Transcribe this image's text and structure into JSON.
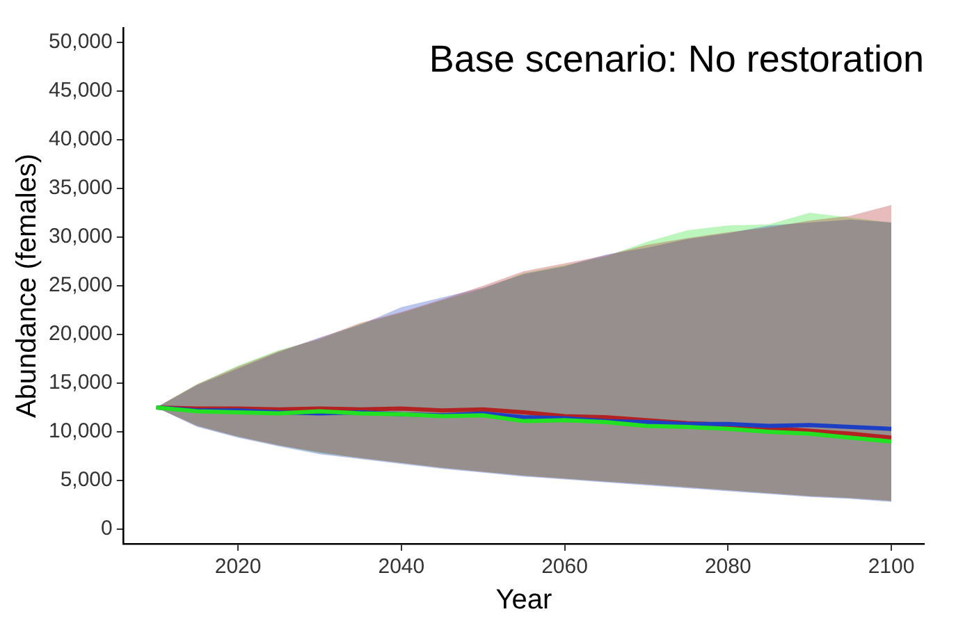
{
  "chart_data": {
    "type": "line",
    "title": "Base scenario: No restoration",
    "xlabel": "Year",
    "ylabel": "Abundance (females)",
    "x": [
      2010,
      2015,
      2020,
      2025,
      2030,
      2035,
      2040,
      2045,
      2050,
      2055,
      2060,
      2065,
      2070,
      2075,
      2080,
      2085,
      2090,
      2095,
      2100
    ],
    "xlim": [
      2006,
      2104
    ],
    "xticks": [
      2020,
      2040,
      2060,
      2080,
      2100
    ],
    "ylim": [
      -1500,
      51500
    ],
    "yticks": [
      {
        "value": 0,
        "label": "0"
      },
      {
        "value": 5000,
        "label": "5,000"
      },
      {
        "value": 10000,
        "label": "10,000"
      },
      {
        "value": 15000,
        "label": "15,000"
      },
      {
        "value": 20000,
        "label": "20,000"
      },
      {
        "value": 25000,
        "label": "25,000"
      },
      {
        "value": 30000,
        "label": "30,000"
      },
      {
        "value": 35000,
        "label": "35,000"
      },
      {
        "value": 40000,
        "label": "40,000"
      },
      {
        "value": 45000,
        "label": "45,000"
      },
      {
        "value": 50000,
        "label": "50,000"
      }
    ],
    "grid": false,
    "legend": false,
    "marker": "none",
    "line_style": "solid",
    "series": [
      {
        "color": "#b22222",
        "values": [
          12500,
          12400,
          12400,
          12300,
          12400,
          12300,
          12400,
          12200,
          12300,
          12000,
          11600,
          11500,
          11200,
          10900,
          10700,
          10400,
          10100,
          9800,
          9400
        ],
        "lower": [
          12500,
          10600,
          9500,
          8600,
          7900,
          7300,
          6800,
          6300,
          5900,
          5500,
          5200,
          4900,
          4600,
          4300,
          4000,
          3700,
          3400,
          3200,
          2900
        ],
        "upper": [
          12500,
          14900,
          16700,
          18300,
          19600,
          21200,
          22300,
          23600,
          25000,
          26500,
          27300,
          28100,
          29200,
          29900,
          30500,
          31000,
          31700,
          32200,
          33300
        ]
      },
      {
        "color": "#1c3fc4",
        "values": [
          12500,
          12200,
          12200,
          12000,
          11900,
          12000,
          11800,
          11700,
          11900,
          11500,
          11400,
          11100,
          11000,
          10800,
          10800,
          10600,
          10700,
          10500,
          10300
        ],
        "lower": [
          12500,
          10500,
          9400,
          8500,
          7700,
          7200,
          6700,
          6200,
          5800,
          5400,
          5100,
          4800,
          4500,
          4200,
          3900,
          3600,
          3300,
          3100,
          2800
        ],
        "upper": [
          12500,
          14800,
          16500,
          18200,
          19700,
          21000,
          22800,
          23800,
          24800,
          26200,
          27000,
          28200,
          28900,
          29800,
          30400,
          31200,
          31500,
          31800,
          31500
        ]
      },
      {
        "color": "#22e022",
        "values": [
          12500,
          12100,
          12000,
          11900,
          12100,
          11900,
          11800,
          11600,
          11700,
          11100,
          11200,
          11000,
          10600,
          10500,
          10300,
          10000,
          9800,
          9400,
          9000
        ],
        "lower": [
          12500,
          10600,
          9500,
          8600,
          7800,
          7300,
          6800,
          6300,
          5900,
          5500,
          5200,
          4900,
          4600,
          4300,
          4000,
          3700,
          3400,
          3200,
          2900
        ],
        "upper": [
          12500,
          14900,
          16800,
          18400,
          19500,
          21100,
          22200,
          23500,
          24700,
          26300,
          27100,
          28000,
          29500,
          30700,
          31200,
          31300,
          32500,
          32000,
          31500
        ]
      }
    ]
  }
}
